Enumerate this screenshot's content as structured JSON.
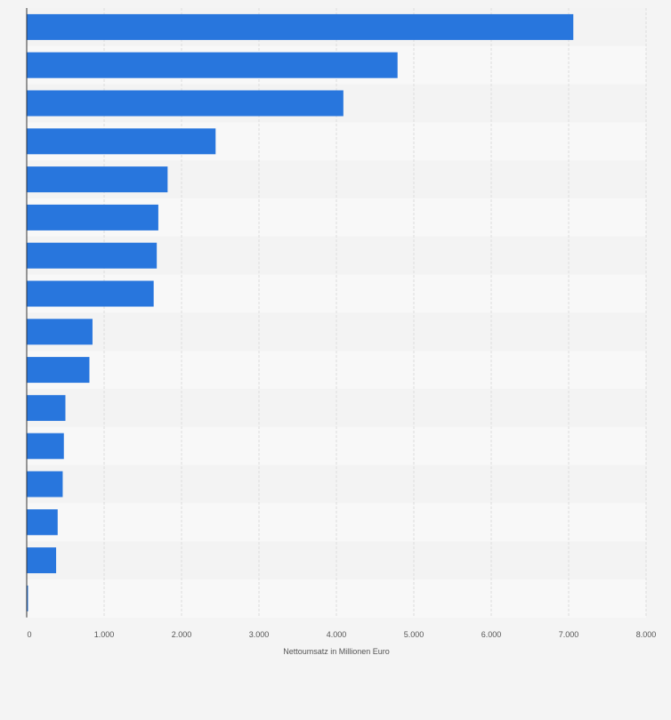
{
  "chart_data": {
    "type": "bar",
    "orientation": "horizontal",
    "title": "",
    "xlabel": "Nettoumsatz in Millionen Euro",
    "ylabel": "",
    "categories": [
      "",
      "",
      "",
      "",
      "",
      "",
      "",
      "",
      "",
      "",
      "",
      "",
      "",
      "",
      "",
      ""
    ],
    "values": [
      7060,
      4790,
      4090,
      2440,
      1820,
      1700,
      1680,
      1640,
      850,
      810,
      500,
      480,
      465,
      400,
      380,
      15
    ],
    "xlim": [
      0,
      8000
    ],
    "xticks": [
      0,
      1000,
      2000,
      3000,
      4000,
      5000,
      6000,
      7000,
      8000
    ],
    "xtick_labels": [
      "0",
      "1.000",
      "2.000",
      "3.000",
      "4.000",
      "5.000",
      "6.000",
      "7.000",
      "8.000"
    ],
    "grid": true,
    "legend": "none",
    "colors": {
      "bar": "#2876dd",
      "background": "#f4f4f4",
      "band_light": "#f8f8f8",
      "band_dark": "#f3f3f3",
      "grid": "#dcdcdc",
      "axis": "#333333",
      "text": "#555555"
    }
  }
}
